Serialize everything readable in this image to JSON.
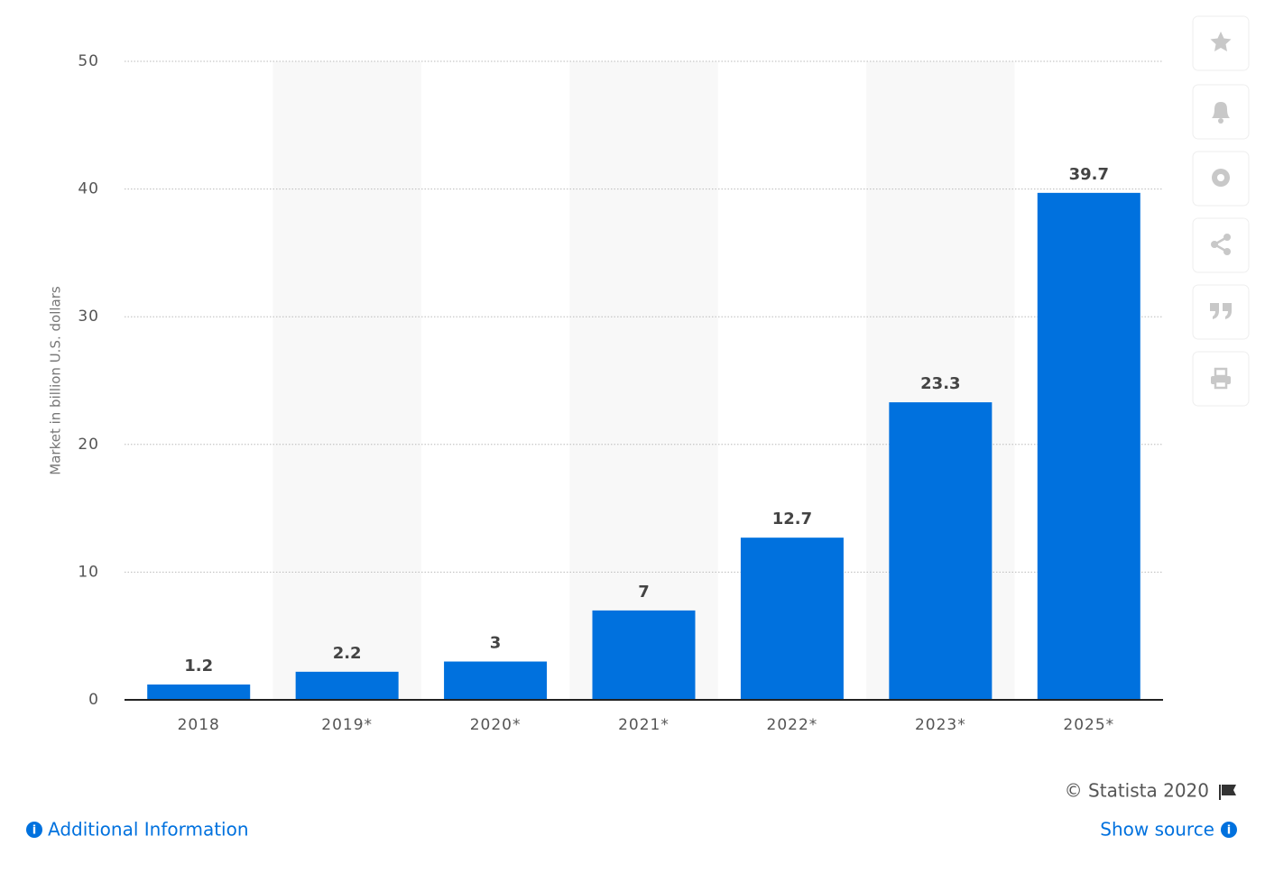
{
  "chart_data": {
    "type": "bar",
    "y_label": "Market in billion U.S. dollars",
    "categories": [
      "2018",
      "2019*",
      "2020*",
      "2021*",
      "2022*",
      "2023*",
      "2025*"
    ],
    "values": [
      1.2,
      2.2,
      3,
      7,
      12.7,
      23.3,
      39.7
    ],
    "color": "#0071de",
    "ylim": [
      0,
      50
    ],
    "yticks": [
      0,
      10,
      20,
      30,
      40,
      50
    ],
    "grid": true
  },
  "footer": {
    "copyright": "© Statista 2020",
    "additional_info": "Additional Information",
    "show_source": "Show source"
  }
}
